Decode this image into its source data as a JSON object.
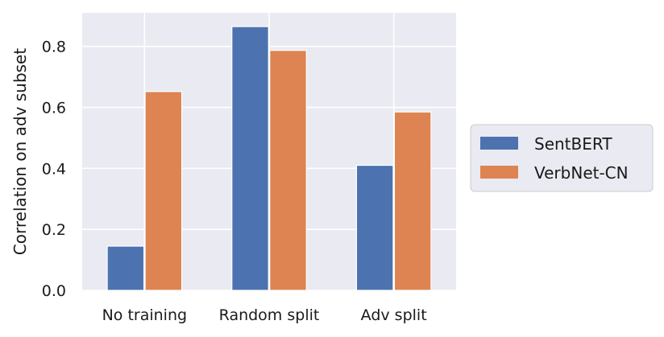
{
  "chart_data": {
    "type": "bar",
    "categories": [
      "No training",
      "Random split",
      "Adv split"
    ],
    "series": [
      {
        "name": "SentBERT",
        "values": [
          0.145,
          0.865,
          0.41
        ],
        "color": "#4c72b0"
      },
      {
        "name": "VerbNet-CN",
        "values": [
          0.652,
          0.787,
          0.585
        ],
        "color": "#dd8452"
      }
    ],
    "xlabel": "",
    "ylabel": "Correlation on adv subset",
    "ylim": [
      0,
      0.91
    ],
    "yticks": [
      0.0,
      0.2,
      0.4,
      0.6,
      0.8
    ],
    "ytick_labels": [
      "0.0",
      "0.2",
      "0.4",
      "0.6",
      "0.8"
    ],
    "grid": true,
    "legend_position": "right-outside",
    "background_color": "#eaeaf2",
    "grid_color": "#ffffff"
  }
}
